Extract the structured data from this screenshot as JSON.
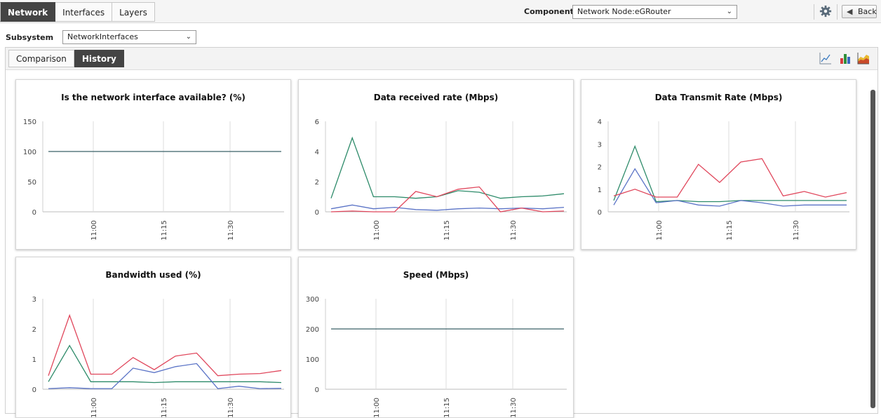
{
  "topbar": {
    "tabs": [
      {
        "label": "Network",
        "active": true
      },
      {
        "label": "Interfaces",
        "active": false
      },
      {
        "label": "Layers",
        "active": false
      }
    ],
    "component_label": "Component",
    "component_value": "Network Node:eGRouter",
    "back_label": "Back",
    "settings_icon": "gear-icon",
    "back_icon": "back-arrow-icon"
  },
  "subsystem": {
    "label": "Subsystem",
    "value": "NetworkInterfaces"
  },
  "panel": {
    "tabs": [
      {
        "label": "Comparison",
        "active": false
      },
      {
        "label": "History",
        "active": true
      }
    ],
    "icons": [
      "line-chart-icon",
      "bar-chart-icon",
      "area-chart-icon"
    ]
  },
  "colors": {
    "series_green": "#2e8b6a",
    "series_blue": "#5a73c6",
    "series_red": "#e0475c",
    "flat_line": "#3a6068",
    "grid": "#dddddd"
  },
  "chart_data": [
    {
      "type": "line",
      "title": "Is the network interface available? (%)",
      "xlabels": [
        "11:00",
        "11:15",
        "11:30"
      ],
      "ylim": [
        0,
        150
      ],
      "yticks": [
        0,
        50,
        100,
        150
      ],
      "series": [
        {
          "color": "#3a6068",
          "values": [
            100,
            100,
            100,
            100,
            100,
            100,
            100,
            100,
            100,
            100,
            100,
            100,
            100,
            100,
            100
          ]
        }
      ]
    },
    {
      "type": "line",
      "title": "Data received rate (Mbps)",
      "xlabels": [
        "11:00",
        "11:15",
        "11:30"
      ],
      "ylim": [
        0,
        6
      ],
      "yticks": [
        0,
        2,
        4,
        6
      ],
      "series": [
        {
          "color": "#2e8b6a",
          "values": [
            0.9,
            4.9,
            1.0,
            1.0,
            0.9,
            1.0,
            1.4,
            1.3,
            0.9,
            1.0,
            1.05,
            1.2
          ]
        },
        {
          "color": "#5a73c6",
          "values": [
            0.2,
            0.45,
            0.2,
            0.3,
            0.15,
            0.1,
            0.2,
            0.25,
            0.2,
            0.25,
            0.2,
            0.3
          ]
        },
        {
          "color": "#e0475c",
          "values": [
            0.0,
            0.05,
            0.0,
            0.0,
            1.35,
            1.0,
            1.5,
            1.65,
            0.0,
            0.25,
            0.0,
            0.05
          ]
        }
      ]
    },
    {
      "type": "line",
      "title": "Data Transmit Rate (Mbps)",
      "xlabels": [
        "11:00",
        "11:15",
        "11:30"
      ],
      "ylim": [
        0,
        4
      ],
      "yticks": [
        0,
        1,
        2,
        3,
        4
      ],
      "series": [
        {
          "color": "#2e8b6a",
          "values": [
            0.5,
            2.9,
            0.45,
            0.5,
            0.45,
            0.45,
            0.5,
            0.5,
            0.5,
            0.5,
            0.5,
            0.5
          ]
        },
        {
          "color": "#5a73c6",
          "values": [
            0.3,
            1.9,
            0.4,
            0.5,
            0.3,
            0.25,
            0.5,
            0.4,
            0.25,
            0.3,
            0.3,
            0.3
          ]
        },
        {
          "color": "#e0475c",
          "values": [
            0.7,
            1.0,
            0.65,
            0.65,
            2.1,
            1.3,
            2.2,
            2.35,
            0.7,
            0.9,
            0.65,
            0.85
          ]
        }
      ]
    },
    {
      "type": "line",
      "title": "Bandwidth used (%)",
      "xlabels": [
        "11:00",
        "11:15",
        "11:30"
      ],
      "ylim": [
        0,
        3
      ],
      "yticks": [
        0,
        1,
        2,
        3
      ],
      "series": [
        {
          "color": "#2e8b6a",
          "values": [
            0.25,
            1.45,
            0.25,
            0.25,
            0.25,
            0.22,
            0.25,
            0.25,
            0.25,
            0.25,
            0.25,
            0.22
          ]
        },
        {
          "color": "#5a73c6",
          "values": [
            0.02,
            0.05,
            0.02,
            0.02,
            0.7,
            0.55,
            0.75,
            0.85,
            0.02,
            0.1,
            0.02,
            0.03
          ]
        },
        {
          "color": "#e0475c",
          "values": [
            0.45,
            2.45,
            0.5,
            0.5,
            1.05,
            0.65,
            1.1,
            1.2,
            0.45,
            0.5,
            0.52,
            0.62
          ]
        }
      ]
    },
    {
      "type": "line",
      "title": "Speed (Mbps)",
      "xlabels": [
        "11:00",
        "11:15",
        "11:30"
      ],
      "ylim": [
        0,
        300
      ],
      "yticks": [
        0,
        100,
        200,
        300
      ],
      "series": [
        {
          "color": "#3a6068",
          "values": [
            200,
            200,
            200,
            200,
            200,
            200,
            200,
            200,
            200,
            200,
            200,
            200
          ]
        }
      ]
    }
  ]
}
